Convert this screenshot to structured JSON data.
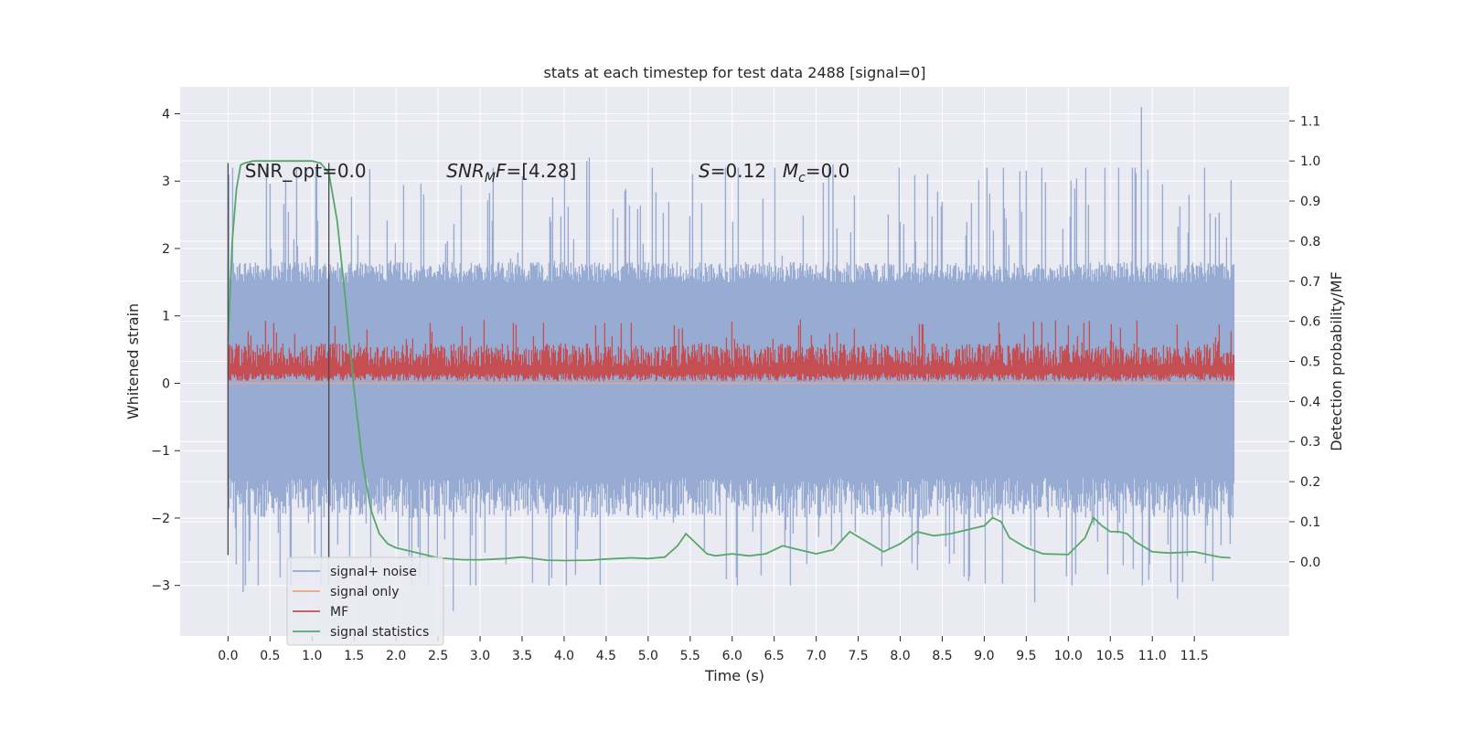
{
  "chart_data": {
    "type": "line",
    "title": "stats at each timestep for test data 2488 [signal=0]",
    "xlabel": "Time (s)",
    "ylabel": "Whitened strain",
    "y2label": "Detection probability/MF",
    "xlim": [
      -0.57,
      12.63
    ],
    "ylim": [
      -3.75,
      4.4
    ],
    "y2lim": [
      -0.185,
      1.185
    ],
    "x_ticks": [
      "0.0",
      "0.5",
      "1.0",
      "1.5",
      "2.0",
      "2.5",
      "3.0",
      "3.5",
      "4.0",
      "4.5",
      "5.0",
      "5.5",
      "6.0",
      "6.5",
      "7.0",
      "7.5",
      "8.0",
      "8.5",
      "9.0",
      "9.5",
      "10.0",
      "10.5",
      "11.0",
      "11.5"
    ],
    "y_ticks": [
      "−3",
      "−2",
      "−1",
      "0",
      "1",
      "2",
      "3",
      "4"
    ],
    "y2_ticks": [
      "0.0",
      "0.1",
      "0.2",
      "0.3",
      "0.4",
      "0.5",
      "0.6",
      "0.7",
      "0.8",
      "0.9",
      "1.0",
      "1.1"
    ],
    "grid": true,
    "legend_position": "lower-left",
    "colors": {
      "plot_bg": "#eaeaf2",
      "noise": "#94a9d1",
      "signal_only": "#e8a587",
      "mf": "#c44e52",
      "stats": "#55a868",
      "marker": "#4a4a4a"
    },
    "annotations": {
      "snr_opt": "SNR_opt=0.0",
      "snr_mf_var": "SNR",
      "snr_mf_sub": "M",
      "snr_mf_var2": "F",
      "snr_mf_value": "=[4.28]",
      "s_var": "S",
      "s_value": "=0.12",
      "mc_var": "M",
      "mc_sub": "c",
      "mc_value": "=0.0"
    },
    "markers": [
      {
        "x": 0.0,
        "y_range": [
          -2.55,
          3.27
        ]
      },
      {
        "x": 1.2,
        "y_range": [
          -2.6,
          3.27
        ]
      }
    ],
    "series": [
      {
        "name": "signal+ noise",
        "style": "noise-band",
        "x_range": [
          0.0,
          11.98
        ],
        "typical_range": [
          -1.4,
          1.5
        ],
        "extreme_range": [
          -3.3,
          4.1
        ],
        "peaks": [
          [
            10.87,
            4.1
          ],
          [
            4.3,
            3.35
          ],
          [
            4.27,
            3.3
          ],
          [
            7.2,
            3.25
          ]
        ],
        "troughs": [
          [
            2.68,
            -3.38
          ],
          [
            9.6,
            -3.25
          ],
          [
            0.18,
            -3.1
          ],
          [
            11.3,
            -3.2
          ]
        ]
      },
      {
        "name": "signal only",
        "style": "line",
        "values_note_only_flat": true,
        "x": [
          0.0,
          11.98
        ],
        "y": [
          0.0,
          0.0
        ]
      },
      {
        "name": "MF",
        "style": "mf-band",
        "x_range": [
          0.0,
          11.98
        ],
        "baseline": 0.03,
        "typical_top": 0.6,
        "max_top": 0.98
      },
      {
        "name": "signal statistics",
        "style": "line",
        "axis": "y2",
        "x": [
          0.0,
          0.05,
          0.1,
          0.15,
          0.2,
          0.3,
          0.5,
          0.8,
          1.0,
          1.1,
          1.2,
          1.3,
          1.4,
          1.5,
          1.6,
          1.7,
          1.8,
          1.9,
          2.0,
          2.2,
          2.5,
          2.8,
          3.0,
          3.3,
          3.5,
          3.8,
          4.0,
          4.3,
          4.5,
          4.8,
          5.0,
          5.2,
          5.35,
          5.45,
          5.55,
          5.7,
          5.8,
          6.0,
          6.2,
          6.4,
          6.6,
          6.8,
          7.0,
          7.2,
          7.4,
          7.6,
          7.8,
          8.0,
          8.2,
          8.4,
          8.6,
          8.8,
          9.0,
          9.1,
          9.2,
          9.3,
          9.5,
          9.7,
          10.0,
          10.2,
          10.3,
          10.4,
          10.5,
          10.6,
          10.7,
          10.8,
          11.0,
          11.2,
          11.5,
          11.8,
          11.93
        ],
        "y": [
          0.55,
          0.8,
          0.93,
          0.99,
          0.995,
          1.0,
          1.0,
          1.0,
          1.0,
          0.995,
          0.97,
          0.85,
          0.65,
          0.43,
          0.25,
          0.13,
          0.07,
          0.045,
          0.035,
          0.025,
          0.01,
          0.005,
          0.005,
          0.008,
          0.012,
          0.004,
          0.003,
          0.004,
          0.007,
          0.01,
          0.008,
          0.012,
          0.04,
          0.07,
          0.05,
          0.02,
          0.015,
          0.02,
          0.015,
          0.02,
          0.04,
          0.03,
          0.02,
          0.03,
          0.075,
          0.05,
          0.025,
          0.045,
          0.075,
          0.065,
          0.07,
          0.08,
          0.09,
          0.11,
          0.1,
          0.06,
          0.035,
          0.02,
          0.018,
          0.06,
          0.11,
          0.09,
          0.075,
          0.075,
          0.07,
          0.05,
          0.025,
          0.022,
          0.025,
          0.012,
          0.01
        ]
      }
    ]
  }
}
